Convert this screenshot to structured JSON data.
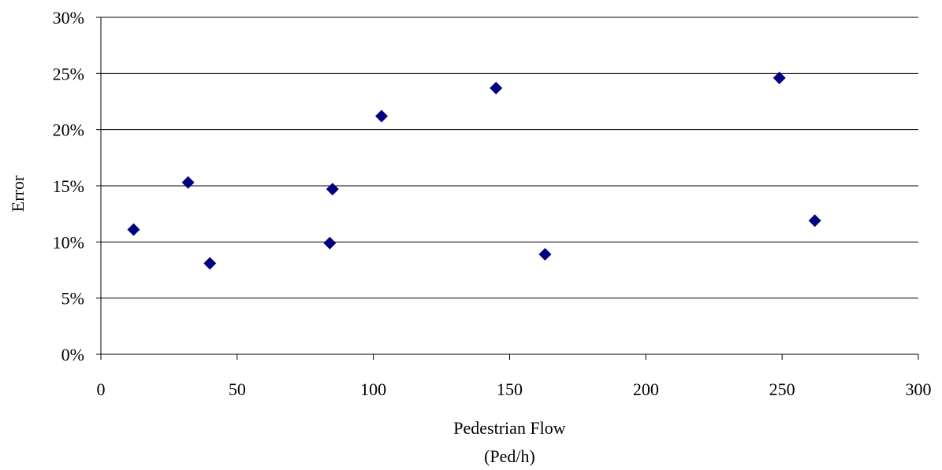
{
  "chart_data": {
    "type": "scatter",
    "xlabel": "Pedestrian Flow",
    "xlabel_unit": "(Ped/h)",
    "ylabel": "Error",
    "xlim": [
      0,
      300
    ],
    "ylim": [
      0,
      0.3
    ],
    "xticks": [
      0,
      50,
      100,
      150,
      200,
      250,
      300
    ],
    "xtick_labels": [
      "0",
      "50",
      "100",
      "150",
      "200",
      "250",
      "300"
    ],
    "yticks": [
      0,
      0.05,
      0.1,
      0.15,
      0.2,
      0.25,
      0.3
    ],
    "ytick_labels": [
      "0%",
      "5%",
      "10%",
      "15%",
      "20%",
      "25%",
      "30%"
    ],
    "grid": "horizontal",
    "marker": "diamond",
    "marker_color": "#000080",
    "series": [
      {
        "points": [
          {
            "x": 12,
            "y": 0.111
          },
          {
            "x": 32,
            "y": 0.153
          },
          {
            "x": 40,
            "y": 0.081
          },
          {
            "x": 84,
            "y": 0.099
          },
          {
            "x": 85,
            "y": 0.147
          },
          {
            "x": 103,
            "y": 0.212
          },
          {
            "x": 145,
            "y": 0.237
          },
          {
            "x": 163,
            "y": 0.089
          },
          {
            "x": 249,
            "y": 0.246
          },
          {
            "x": 262,
            "y": 0.119
          }
        ]
      }
    ]
  }
}
